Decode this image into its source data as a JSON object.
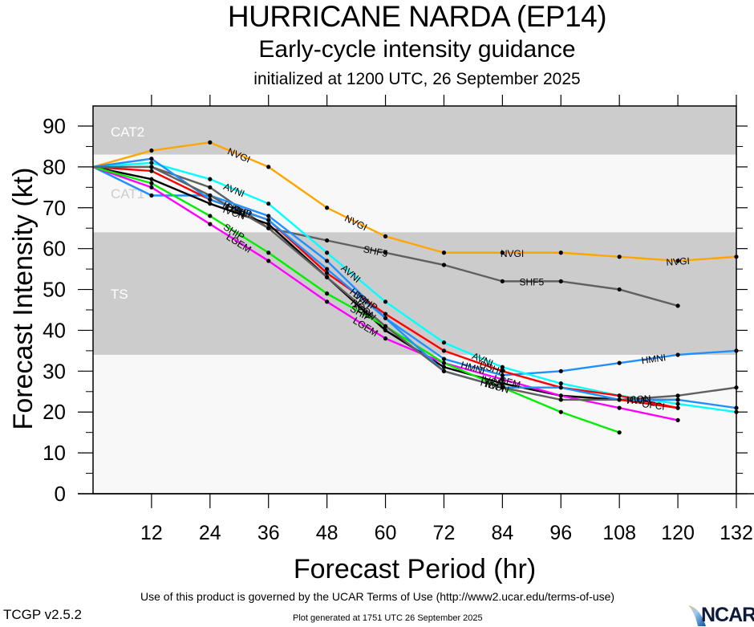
{
  "chart_data": {
    "type": "line",
    "title": "HURRICANE NARDA (EP14)",
    "subtitle": "Early-cycle intensity guidance",
    "subtitle2": "initialized at 1200 UTC, 26 September 2025",
    "xlabel": "Forecast Period (hr)",
    "ylabel": "Forecast Intensity (kt)",
    "xlim": [
      0,
      132
    ],
    "ylim": [
      0,
      90
    ],
    "xticks": [
      12,
      24,
      36,
      48,
      60,
      72,
      84,
      96,
      108,
      120,
      132
    ],
    "yticks": [
      0,
      10,
      20,
      30,
      40,
      50,
      60,
      70,
      80,
      90
    ],
    "grid": false,
    "bands": [
      {
        "label": "CAT2",
        "from": 83,
        "to": 95,
        "shade": "#cccccc"
      },
      {
        "label": "CAT1",
        "from": 64,
        "to": 83,
        "shade": "#f8f8f8"
      },
      {
        "label": "TS",
        "from": 34,
        "to": 64,
        "shade": "#cccccc"
      },
      {
        "label": "",
        "from": 0,
        "to": 34,
        "shade": "#f8f8f8"
      }
    ],
    "series": [
      {
        "name": "NVGI",
        "color": "#ffa500",
        "x": [
          0,
          12,
          24,
          36,
          48,
          60,
          72,
          84,
          96,
          108,
          120,
          132
        ],
        "y": [
          80,
          84,
          86,
          80,
          70,
          63,
          59,
          59,
          59,
          58,
          57,
          58
        ],
        "labels_at": [
          30,
          54,
          86,
          120
        ]
      },
      {
        "name": "SHF5",
        "color": "#606060",
        "x": [
          0,
          12,
          24,
          36,
          48,
          60,
          72,
          84,
          96,
          108,
          120
        ],
        "y": [
          80,
          80,
          75,
          65,
          62,
          59,
          56,
          52,
          52,
          50,
          46
        ],
        "labels_at": [
          58,
          90
        ]
      },
      {
        "name": "HMNI",
        "color": "#1e90ff",
        "x": [
          0,
          12,
          24,
          36,
          48,
          60,
          72,
          84,
          96,
          108,
          120,
          132
        ],
        "y": [
          80,
          73,
          73,
          68,
          57,
          43,
          33,
          29,
          30,
          32,
          34,
          35
        ],
        "labels_at": [
          78,
          115
        ]
      },
      {
        "name": "AVNI",
        "color": "#00ffff",
        "x": [
          0,
          12,
          24,
          36,
          48,
          60,
          72,
          84,
          96,
          108,
          120,
          132
        ],
        "y": [
          80,
          81,
          77,
          71,
          59,
          47,
          37,
          31,
          27,
          24,
          22,
          20
        ],
        "labels_at": [
          29,
          53,
          80
        ]
      },
      {
        "name": "IVCN",
        "color": "#000000",
        "x": [
          0,
          12,
          24,
          36,
          48,
          60,
          72,
          84,
          96,
          108,
          120
        ],
        "y": [
          80,
          77,
          71,
          66,
          53,
          40,
          31,
          27,
          24,
          23,
          23
        ],
        "labels_at": [
          29,
          55,
          82
        ]
      },
      {
        "name": "DSHP",
        "color": "#ff0000",
        "x": [
          0,
          12,
          24,
          36,
          48,
          60,
          72,
          84,
          96,
          108,
          120
        ],
        "y": [
          80,
          79,
          72,
          67,
          54,
          44,
          35,
          30,
          26,
          24,
          21
        ],
        "labels_at": [
          30,
          56,
          82
        ]
      },
      {
        "name": "LGEM",
        "color": "#ff00ff",
        "x": [
          0,
          12,
          24,
          36,
          48,
          60,
          72,
          84,
          96,
          108,
          120
        ],
        "y": [
          80,
          75,
          66,
          57,
          47,
          38,
          32,
          28,
          24,
          21,
          18
        ],
        "labels_at": [
          30,
          56,
          85
        ]
      },
      {
        "name": "SHIP",
        "color": "#00ee00",
        "x": [
          0,
          12,
          24,
          36,
          48,
          60,
          72,
          84,
          96,
          108
        ],
        "y": [
          80,
          76,
          68,
          59,
          49,
          41,
          32,
          26,
          20,
          15
        ],
        "labels_at": [
          29,
          55
        ]
      },
      {
        "name": "HWFI",
        "color": "#1e90ff",
        "x": [
          0,
          12,
          24,
          36,
          48,
          60,
          72,
          84,
          96,
          108,
          120,
          132
        ],
        "y": [
          80,
          82,
          72,
          67,
          55,
          43,
          30,
          26,
          26,
          23,
          23,
          21
        ],
        "labels_at": [
          30,
          55,
          82,
          112
        ]
      },
      {
        "name": "ICON",
        "color": "#606060",
        "x": [
          0,
          12,
          24,
          36,
          48,
          60,
          72,
          84,
          96,
          108,
          120,
          132
        ],
        "y": [
          80,
          80,
          73,
          65,
          53,
          41,
          30,
          26,
          23,
          23,
          24,
          26
        ],
        "labels_at": [
          29,
          56,
          83,
          112
        ]
      },
      {
        "name": "OFCI",
        "color": "#ff0000",
        "x": [
          108,
          120
        ],
        "y": [
          23,
          21
        ],
        "labels_at": [
          115
        ]
      }
    ]
  },
  "footer": {
    "terms": "Use of this product is governed by the UCAR Terms of Use (http://www2.ucar.edu/terms-of-use)",
    "version": "TCGP v2.5.2",
    "generated": "Plot generated at 1751 UTC   26 September 2025",
    "logo": "NCAR"
  }
}
